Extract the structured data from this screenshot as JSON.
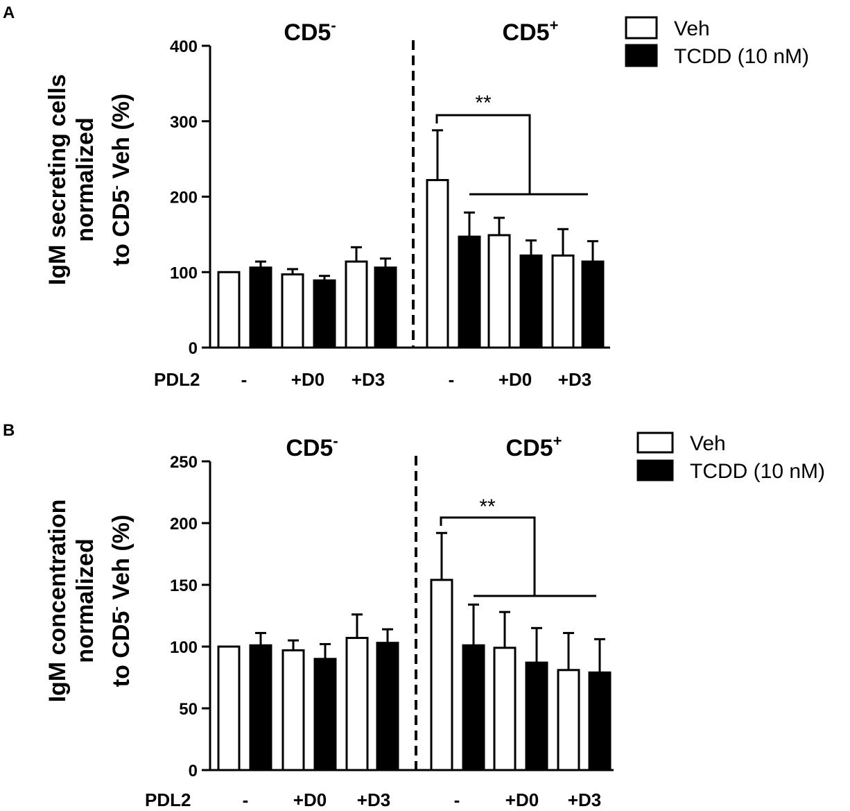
{
  "chart_data": [
    {
      "type": "bar",
      "panel": "A",
      "ylabel_line1": "IgM secreting cells",
      "ylabel_line2": "normalized",
      "ylabel_line3_pre": "to CD5",
      "ylabel_line3_sup": "-",
      "ylabel_line3_post": " Veh (%)",
      "ylim": [
        0,
        400
      ],
      "yticks": [
        "0",
        "100",
        "200",
        "300",
        "400"
      ],
      "group_left": {
        "label": "CD5",
        "sup": "-"
      },
      "group_right": {
        "label": "CD5",
        "sup": "+"
      },
      "x_row_label": "PDL2",
      "categories": [
        "-",
        "+D0",
        "+D3",
        "-",
        "+D0",
        "+D3"
      ],
      "series": [
        {
          "name": "Veh",
          "color": "#ffffff",
          "values": [
            100,
            97,
            114,
            222,
            149,
            122
          ],
          "errors": [
            0,
            7,
            19,
            66,
            23,
            35
          ]
        },
        {
          "name": "TCDD (10 nM)",
          "color": "#000000",
          "values": [
            106,
            89,
            106,
            147,
            122,
            114
          ],
          "errors": [
            8,
            6,
            12,
            32,
            20,
            27
          ]
        }
      ],
      "significance": "**",
      "legend": [
        "Veh",
        "TCDD (10 nM)"
      ]
    },
    {
      "type": "bar",
      "panel": "B",
      "ylabel_line1": "IgM concentration",
      "ylabel_line2": "normalized",
      "ylabel_line3_pre": "to CD5",
      "ylabel_line3_sup": "-",
      "ylabel_line3_post": " Veh (%)",
      "ylim": [
        0,
        250
      ],
      "yticks": [
        "0",
        "50",
        "100",
        "150",
        "200",
        "250"
      ],
      "group_left": {
        "label": "CD5",
        "sup": "-"
      },
      "group_right": {
        "label": "CD5",
        "sup": "+"
      },
      "x_row_label": "PDL2",
      "categories": [
        "-",
        "+D0",
        "+D3",
        "-",
        "+D0",
        "+D3"
      ],
      "series": [
        {
          "name": "Veh",
          "color": "#ffffff",
          "values": [
            100,
            97,
            107,
            154,
            99,
            81
          ],
          "errors": [
            0,
            8,
            19,
            38,
            29,
            30
          ]
        },
        {
          "name": "TCDD (10 nM)",
          "color": "#000000",
          "values": [
            101,
            90,
            103,
            101,
            87,
            79
          ],
          "errors": [
            10,
            12,
            11,
            33,
            28,
            27
          ]
        }
      ],
      "significance": "**",
      "legend": [
        "Veh",
        "TCDD (10 nM)"
      ]
    }
  ]
}
